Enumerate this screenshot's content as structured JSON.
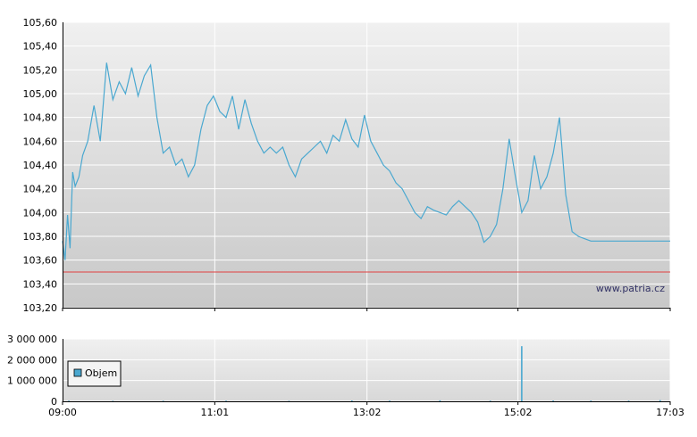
{
  "watermark": "www.patria.cz",
  "colors": {
    "price_line": "#4aa8d0",
    "reference_line": "#e04040",
    "volume_bar": "#4aa8d0",
    "grid": "#ffffff",
    "plot_top": "#f0f0f0",
    "plot_bottom": "#c8c8c8",
    "axis": "#000000"
  },
  "chart_data": [
    {
      "type": "line",
      "id": "price",
      "ylim": [
        103.2,
        105.6
      ],
      "y_ticks": [
        "105,60",
        "105,40",
        "105,20",
        "105,00",
        "104,80",
        "104,60",
        "104,40",
        "104,20",
        "104,00",
        "103,80",
        "103,60",
        "103,40",
        "103,20"
      ],
      "y_tick_values": [
        105.6,
        105.4,
        105.2,
        105.0,
        104.8,
        104.6,
        104.4,
        104.2,
        104.0,
        103.8,
        103.6,
        103.4,
        103.2
      ],
      "reference_line": 103.5,
      "x_range": [
        "09:00",
        "17:03"
      ],
      "series": [
        {
          "x": [
            "09:00",
            "09:02",
            "09:04",
            "09:06",
            "09:08",
            "09:10",
            "09:13",
            "09:16",
            "09:20",
            "09:25",
            "09:30",
            "09:35",
            "09:40",
            "09:45",
            "09:50",
            "09:55",
            "10:00",
            "10:05",
            "10:10",
            "10:15",
            "10:20",
            "10:25",
            "10:30",
            "10:35",
            "10:40",
            "10:45",
            "10:50",
            "10:55",
            "11:00",
            "11:05",
            "11:10",
            "11:15",
            "11:20",
            "11:25",
            "11:30",
            "11:35",
            "11:40",
            "11:45",
            "11:50",
            "11:55",
            "12:00",
            "12:05",
            "12:10",
            "12:15",
            "12:20",
            "12:25",
            "12:30",
            "12:35",
            "12:40",
            "12:45",
            "12:50",
            "12:55",
            "13:00",
            "13:05",
            "13:10",
            "13:15",
            "13:20",
            "13:25",
            "13:30",
            "13:35",
            "13:40",
            "13:45",
            "13:50",
            "13:55",
            "14:00",
            "14:05",
            "14:10",
            "14:15",
            "14:20",
            "14:25",
            "14:30",
            "14:35",
            "14:40",
            "14:45",
            "14:50",
            "14:55",
            "15:00",
            "15:05",
            "15:10",
            "15:15",
            "15:20",
            "15:25",
            "15:30",
            "15:35",
            "15:40",
            "15:45",
            "15:50",
            "15:55",
            "16:00",
            "16:05",
            "16:10",
            "16:15",
            "16:20",
            "16:25",
            "16:30",
            "16:35",
            "16:40",
            "16:45",
            "16:50",
            "16:55",
            "17:00",
            "17:03"
          ],
          "y": [
            103.76,
            103.6,
            103.98,
            103.7,
            104.34,
            104.22,
            104.3,
            104.48,
            104.6,
            104.9,
            104.6,
            105.26,
            104.95,
            105.1,
            105.0,
            105.22,
            104.98,
            105.15,
            105.24,
            104.8,
            104.5,
            104.55,
            104.4,
            104.45,
            104.3,
            104.4,
            104.7,
            104.9,
            104.98,
            104.85,
            104.8,
            104.98,
            104.7,
            104.95,
            104.75,
            104.6,
            104.5,
            104.55,
            104.5,
            104.55,
            104.4,
            104.3,
            104.45,
            104.5,
            104.55,
            104.6,
            104.5,
            104.65,
            104.6,
            104.78,
            104.62,
            104.55,
            104.82,
            104.6,
            104.5,
            104.4,
            104.35,
            104.25,
            104.2,
            104.1,
            104.0,
            103.95,
            104.05,
            104.02,
            104.0,
            103.98,
            104.05,
            104.1,
            104.05,
            104.0,
            103.92,
            103.75,
            103.8,
            103.9,
            104.2,
            104.62,
            104.3,
            104.0,
            104.1,
            104.48,
            104.2,
            104.3,
            104.5,
            104.8,
            104.15,
            103.84,
            103.8,
            103.78,
            103.76,
            103.76,
            103.76,
            103.76,
            103.76,
            103.76,
            103.76,
            103.76,
            103.76,
            103.76,
            103.76,
            103.76,
            103.76,
            103.76
          ]
        }
      ]
    },
    {
      "type": "bar",
      "id": "volume",
      "ylim": [
        0,
        3000000
      ],
      "y_ticks": [
        "3 000 000",
        "2 000 000",
        "1 000 000",
        "0"
      ],
      "y_tick_values": [
        3000000,
        2000000,
        1000000,
        0
      ],
      "x_ticks": [
        "09:00",
        "11:01",
        "13:02",
        "15:02",
        "17:03"
      ],
      "legend": {
        "label": "Objem",
        "position": "left"
      },
      "series": [
        {
          "name": "Objem",
          "x": [
            "09:05",
            "09:40",
            "10:20",
            "11:10",
            "12:00",
            "12:50",
            "13:20",
            "14:00",
            "14:40",
            "15:05",
            "15:30",
            "16:00",
            "16:30",
            "16:55"
          ],
          "values": [
            30000,
            20000,
            25000,
            30000,
            20000,
            40000,
            35000,
            50000,
            30000,
            2650000,
            40000,
            35000,
            30000,
            60000
          ]
        }
      ]
    }
  ]
}
